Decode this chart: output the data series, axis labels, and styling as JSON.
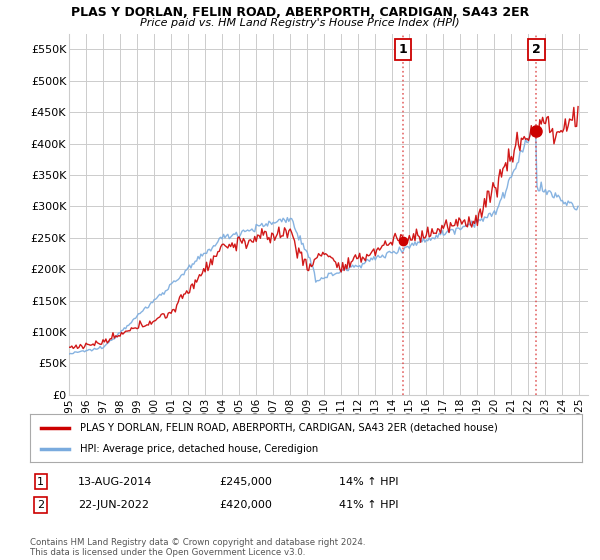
{
  "title": "PLAS Y DORLAN, FELIN ROAD, ABERPORTH, CARDIGAN, SA43 2ER",
  "subtitle": "Price paid vs. HM Land Registry's House Price Index (HPI)",
  "ylabel_ticks": [
    "£0",
    "£50K",
    "£100K",
    "£150K",
    "£200K",
    "£250K",
    "£300K",
    "£350K",
    "£400K",
    "£450K",
    "£500K",
    "£550K"
  ],
  "ytick_vals": [
    0,
    50000,
    100000,
    150000,
    200000,
    250000,
    300000,
    350000,
    400000,
    450000,
    500000,
    550000
  ],
  "ylim": [
    0,
    575000
  ],
  "sale1_date_label": "13-AUG-2014",
  "sale1_price": 245000,
  "sale1_pct": "14%",
  "sale1_year": 2014.62,
  "sale2_date_label": "22-JUN-2022",
  "sale2_price": 420000,
  "sale2_year": 2022.47,
  "sale2_pct": "41%",
  "red_color": "#cc0000",
  "blue_color": "#7aabde",
  "background_color": "#ffffff",
  "grid_color": "#cccccc",
  "legend_label_red": "PLAS Y DORLAN, FELIN ROAD, ABERPORTH, CARDIGAN, SA43 2ER (detached house)",
  "legend_label_blue": "HPI: Average price, detached house, Ceredigion",
  "copyright_text": "Contains HM Land Registry data © Crown copyright and database right 2024.\nThis data is licensed under the Open Government Licence v3.0.",
  "xmin": 1995,
  "xmax": 2025.5
}
